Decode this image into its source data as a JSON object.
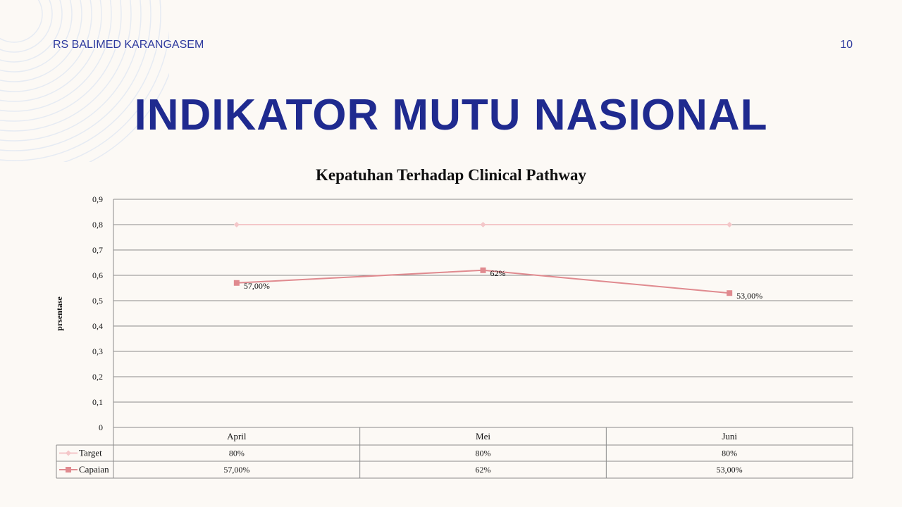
{
  "header": {
    "org": "RS BALIMED KARANGASEM",
    "page": "10"
  },
  "title": "INDIKATOR MUTU NASIONAL",
  "chart_data": {
    "type": "line",
    "title": "Kepatuhan Terhadap Clinical Pathway",
    "ylabel": "prsentase",
    "xlabel": "",
    "ylim": [
      0,
      0.9
    ],
    "yticks": [
      "0",
      "0,1",
      "0,2",
      "0,3",
      "0,4",
      "0,5",
      "0,6",
      "0,7",
      "0,8",
      "0,9"
    ],
    "grid": true,
    "legend": "data-table",
    "categories": [
      "April",
      "Mei",
      "Juni"
    ],
    "series": [
      {
        "name": "Target",
        "values": [
          0.8,
          0.8,
          0.8
        ],
        "labels": [
          "80%",
          "80%",
          "80%"
        ],
        "color": "#f4c7c9",
        "marker": "diamond",
        "show_point_labels": false
      },
      {
        "name": "Capaian",
        "values": [
          0.57,
          0.62,
          0.53
        ],
        "labels": [
          "57,00%",
          "62%",
          "53,00%"
        ],
        "color": "#e08a8f",
        "marker": "square",
        "show_point_labels": true
      }
    ]
  }
}
